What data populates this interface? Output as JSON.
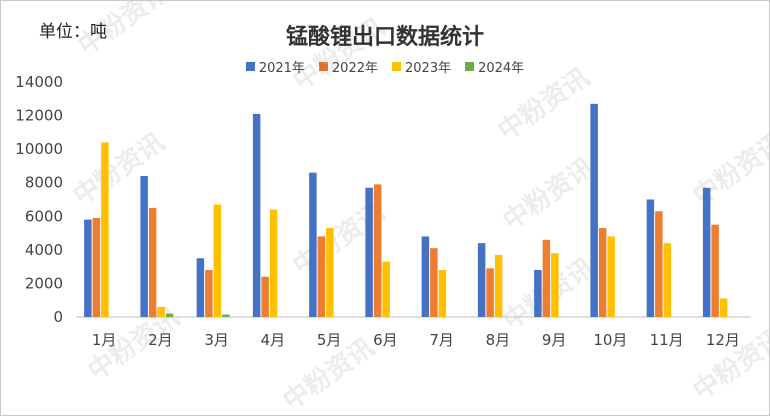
{
  "unit_label": "单位：吨",
  "watermark_text": "中粉资讯",
  "chart_data": {
    "type": "bar",
    "title": "锰酸锂出口数据统计",
    "categories": [
      "1月",
      "2月",
      "3月",
      "4月",
      "5月",
      "6月",
      "7月",
      "8月",
      "9月",
      "10月",
      "11月",
      "12月"
    ],
    "series": [
      {
        "name": "2021年",
        "color": "#4472C4",
        "values": [
          5800,
          8400,
          3500,
          12100,
          8600,
          7700,
          4800,
          4400,
          2800,
          12700,
          7000,
          7700
        ]
      },
      {
        "name": "2022年",
        "color": "#ED7D31",
        "values": [
          5900,
          6500,
          2800,
          2400,
          4800,
          7900,
          4100,
          2900,
          4600,
          5300,
          6300,
          5500
        ]
      },
      {
        "name": "2023年",
        "color": "#FFC000",
        "values": [
          10400,
          600,
          6700,
          6400,
          5300,
          3300,
          2800,
          3700,
          3800,
          4800,
          4400,
          1100
        ]
      },
      {
        "name": "2024年",
        "color": "#70AD47",
        "values": [
          0,
          200,
          150,
          0,
          0,
          0,
          0,
          0,
          0,
          0,
          0,
          0
        ]
      }
    ],
    "y_ticks": [
      0,
      2000,
      4000,
      6000,
      8000,
      10000,
      12000,
      14000
    ],
    "ylim": [
      0,
      14000
    ],
    "grid": false,
    "legend_position": "top"
  }
}
